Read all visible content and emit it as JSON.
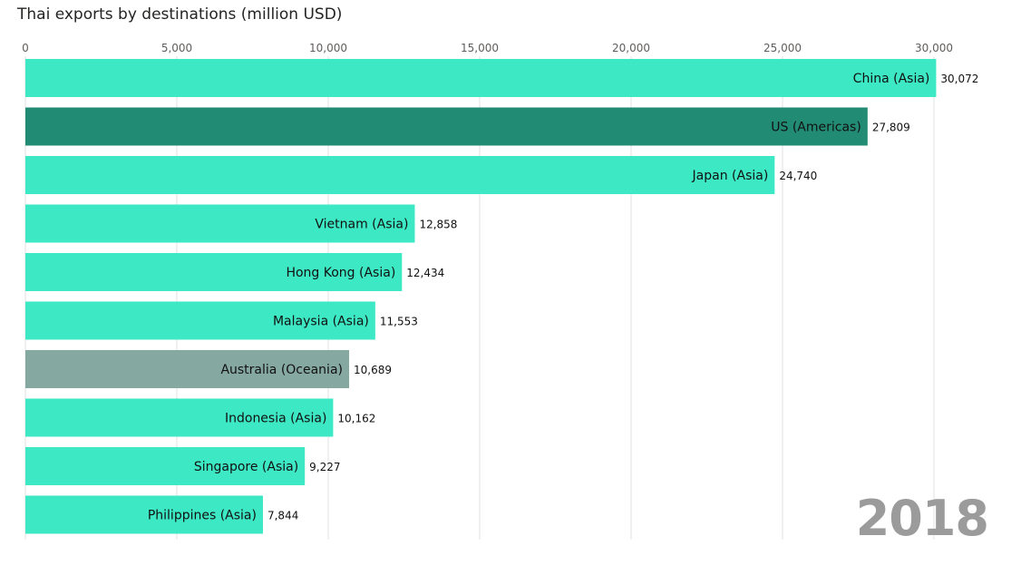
{
  "chart_data": {
    "type": "bar",
    "orientation": "horizontal",
    "title": "Thai exports by destinations (million USD)",
    "categories": [
      "China (Asia)",
      "US (Americas)",
      "Japan (Asia)",
      "Vietnam (Asia)",
      "Hong Kong (Asia)",
      "Malaysia (Asia)",
      "Australia (Oceania)",
      "Indonesia (Asia)",
      "Singapore (Asia)",
      "Philippines (Asia)"
    ],
    "values": [
      30072,
      27809,
      24740,
      12858,
      12434,
      11553,
      10689,
      10162,
      9227,
      7844
    ],
    "value_labels": [
      "30,072",
      "27,809",
      "24,740",
      "12,858",
      "12,434",
      "11,553",
      "10,689",
      "10,162",
      "9,227",
      "7,844"
    ],
    "bar_colors": [
      "#3de8c4",
      "#228b74",
      "#3de8c4",
      "#3de8c4",
      "#3de8c4",
      "#3de8c4",
      "#85a8a0",
      "#3de8c4",
      "#3de8c4",
      "#3de8c4"
    ],
    "xlim": [
      0,
      30000
    ],
    "xticks": [
      0,
      5000,
      10000,
      15000,
      20000,
      25000,
      30000
    ],
    "xtick_labels": [
      "0",
      "5,000",
      "10,000",
      "15,000",
      "20,000",
      "25,000",
      "30,000"
    ],
    "axis_position": "top",
    "grid": true,
    "year": "2018"
  }
}
